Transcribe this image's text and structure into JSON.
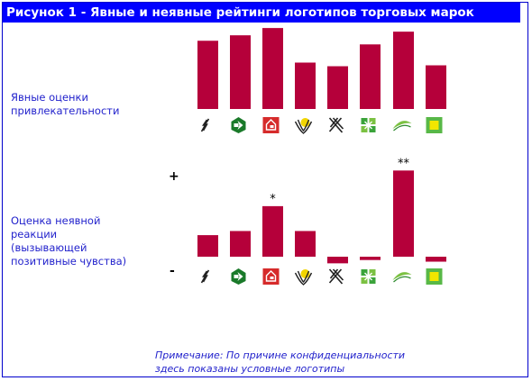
{
  "figure": {
    "title": "Рисунок 1 - Явные и неявные рейтинги логотипов торговых марок",
    "note_line1": "Примечание: По причине  конфиденциальности",
    "note_line2": "здесь показаны условные логотипы",
    "colors": {
      "bar": "#b5003a",
      "title_bg": "#0000ff",
      "label": "#2222cc"
    }
  },
  "chart_data": [
    {
      "type": "bar",
      "name": "explicit",
      "ylabel_lines": [
        "Явные оценки",
        "привлекательности"
      ],
      "categories": [
        "logo-1",
        "logo-2",
        "logo-3",
        "logo-4",
        "logo-5",
        "logo-6",
        "logo-7",
        "logo-8"
      ],
      "values": [
        75,
        81,
        89,
        51,
        47,
        71,
        85,
        48
      ],
      "ylim": [
        0,
        100
      ],
      "annotations": []
    },
    {
      "type": "bar",
      "name": "implicit",
      "ylabel_lines": [
        "Оценка неявной",
        "реакции",
        "(вызывающей",
        "позитивные  чувства)"
      ],
      "axis_top_label": "+",
      "axis_bottom_label": "-",
      "categories": [
        "logo-1",
        "logo-2",
        "logo-3",
        "logo-4",
        "logo-5",
        "logo-6",
        "logo-7",
        "logo-8"
      ],
      "values": [
        26,
        31,
        61,
        31,
        -8,
        -4,
        104,
        -6
      ],
      "ylim": [
        -10,
        110
      ],
      "annotations": [
        {
          "index": 2,
          "text": "*"
        },
        {
          "index": 6,
          "text": "**"
        }
      ]
    }
  ],
  "logos": [
    "logo-1-icon",
    "logo-2-icon",
    "logo-3-icon",
    "logo-4-icon",
    "logo-5-icon",
    "logo-6-icon",
    "logo-7-icon",
    "logo-8-icon"
  ]
}
